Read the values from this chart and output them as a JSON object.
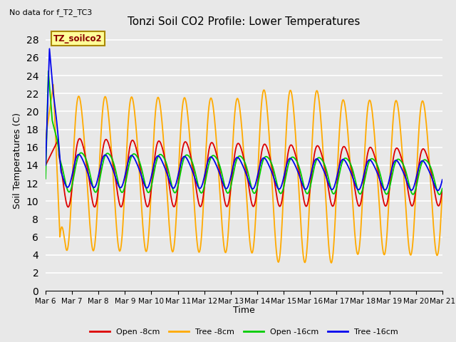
{
  "title": "Tonzi Soil CO2 Profile: Lower Temperatures",
  "subtitle": "No data for f_T2_TC3",
  "ylabel": "Soil Temperatures (C)",
  "xlabel": "Time",
  "ylim": [
    0,
    29
  ],
  "yticks": [
    0,
    2,
    4,
    6,
    8,
    10,
    12,
    14,
    16,
    18,
    20,
    22,
    24,
    26,
    28
  ],
  "xtick_labels": [
    "Mar 6",
    "Mar 7",
    "Mar 8",
    "Mar 9",
    "Mar 10",
    "Mar 11",
    "Mar 12",
    "Mar 13",
    "Mar 14",
    "Mar 15",
    "Mar 16",
    "Mar 17",
    "Mar 18",
    "Mar 19",
    "Mar 20",
    "Mar 21"
  ],
  "legend_label": "TZ_soilco2",
  "series_labels": [
    "Open -8cm",
    "Tree -8cm",
    "Open -16cm",
    "Tree -16cm"
  ],
  "series_colors": [
    "#dd0000",
    "#ffaa00",
    "#00cc00",
    "#0000ee"
  ],
  "background_color": "#e8e8e8",
  "grid_color": "#ffffff",
  "figwidth": 6.4,
  "figheight": 4.8,
  "dpi": 100
}
